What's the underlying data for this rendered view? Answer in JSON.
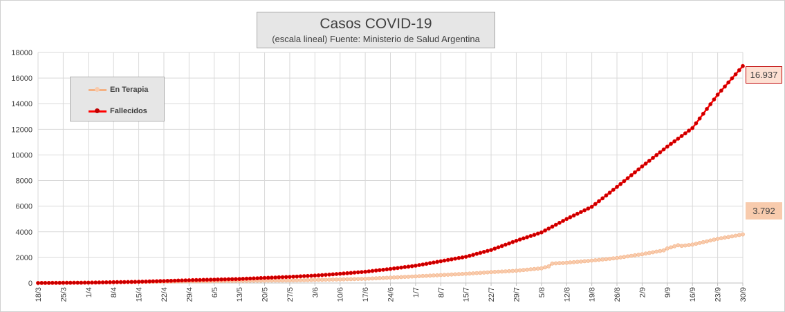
{
  "chart_data": {
    "type": "line",
    "title": "Casos COVID-19",
    "subtitle": "(escala lineal) Fuente: Ministerio de Salud Argentina",
    "ylim": [
      0,
      18000
    ],
    "y_ticks": [
      0,
      2000,
      4000,
      6000,
      8000,
      10000,
      12000,
      14000,
      16000,
      18000
    ],
    "x_start": "2020-03-18",
    "x_end": "2020-09-30",
    "x_tick_labels": [
      "18/3",
      "25/3",
      "1/4",
      "8/4",
      "15/4",
      "22/4",
      "29/4",
      "6/5",
      "13/5",
      "20/5",
      "27/5",
      "3/6",
      "10/6",
      "17/6",
      "24/6",
      "1/7",
      "8/7",
      "15/7",
      "22/7",
      "29/7",
      "5/8",
      "12/8",
      "19/8",
      "26/8",
      "2/9",
      "9/9",
      "16/9",
      "23/9",
      "30/9"
    ],
    "grid": true,
    "legend_position": "top-left",
    "series": [
      {
        "name": "En Terapia",
        "color": "#f4b183",
        "marker_color": "#f8cbad",
        "end_label": "3.792",
        "anchors": [
          [
            "2020-03-18",
            5
          ],
          [
            "2020-04-01",
            40
          ],
          [
            "2020-04-15",
            90
          ],
          [
            "2020-04-29",
            130
          ],
          [
            "2020-05-13",
            170
          ],
          [
            "2020-05-27",
            200
          ],
          [
            "2020-06-03",
            240
          ],
          [
            "2020-06-10",
            280
          ],
          [
            "2020-06-17",
            330
          ],
          [
            "2020-06-24",
            420
          ],
          [
            "2020-07-01",
            520
          ],
          [
            "2020-07-08",
            620
          ],
          [
            "2020-07-15",
            720
          ],
          [
            "2020-07-22",
            850
          ],
          [
            "2020-07-29",
            960
          ],
          [
            "2020-08-05",
            1150
          ],
          [
            "2020-08-07",
            1300
          ],
          [
            "2020-08-08",
            1520
          ],
          [
            "2020-08-12",
            1580
          ],
          [
            "2020-08-19",
            1750
          ],
          [
            "2020-08-26",
            1950
          ],
          [
            "2020-09-02",
            2250
          ],
          [
            "2020-09-08",
            2550
          ],
          [
            "2020-09-09",
            2700
          ],
          [
            "2020-09-12",
            2950
          ],
          [
            "2020-09-13",
            2900
          ],
          [
            "2020-09-16",
            3000
          ],
          [
            "2020-09-23",
            3450
          ],
          [
            "2020-09-30",
            3792
          ]
        ]
      },
      {
        "name": "Fallecidos",
        "color": "#ff0000",
        "marker_color": "#c00000",
        "end_label": "16.937",
        "anchors": [
          [
            "2020-03-18",
            2
          ],
          [
            "2020-04-01",
            27
          ],
          [
            "2020-04-15",
            98
          ],
          [
            "2020-04-29",
            218
          ],
          [
            "2020-05-13",
            315
          ],
          [
            "2020-05-27",
            480
          ],
          [
            "2020-06-03",
            580
          ],
          [
            "2020-06-10",
            720
          ],
          [
            "2020-06-17",
            880
          ],
          [
            "2020-06-24",
            1100
          ],
          [
            "2020-07-01",
            1350
          ],
          [
            "2020-07-08",
            1700
          ],
          [
            "2020-07-15",
            2050
          ],
          [
            "2020-07-22",
            2580
          ],
          [
            "2020-07-29",
            3300
          ],
          [
            "2020-08-05",
            3950
          ],
          [
            "2020-08-12",
            5000
          ],
          [
            "2020-08-19",
            5950
          ],
          [
            "2020-08-26",
            7500
          ],
          [
            "2020-09-02",
            9100
          ],
          [
            "2020-09-09",
            10650
          ],
          [
            "2020-09-16",
            12100
          ],
          [
            "2020-09-23",
            14700
          ],
          [
            "2020-09-30",
            16937
          ]
        ]
      }
    ]
  }
}
